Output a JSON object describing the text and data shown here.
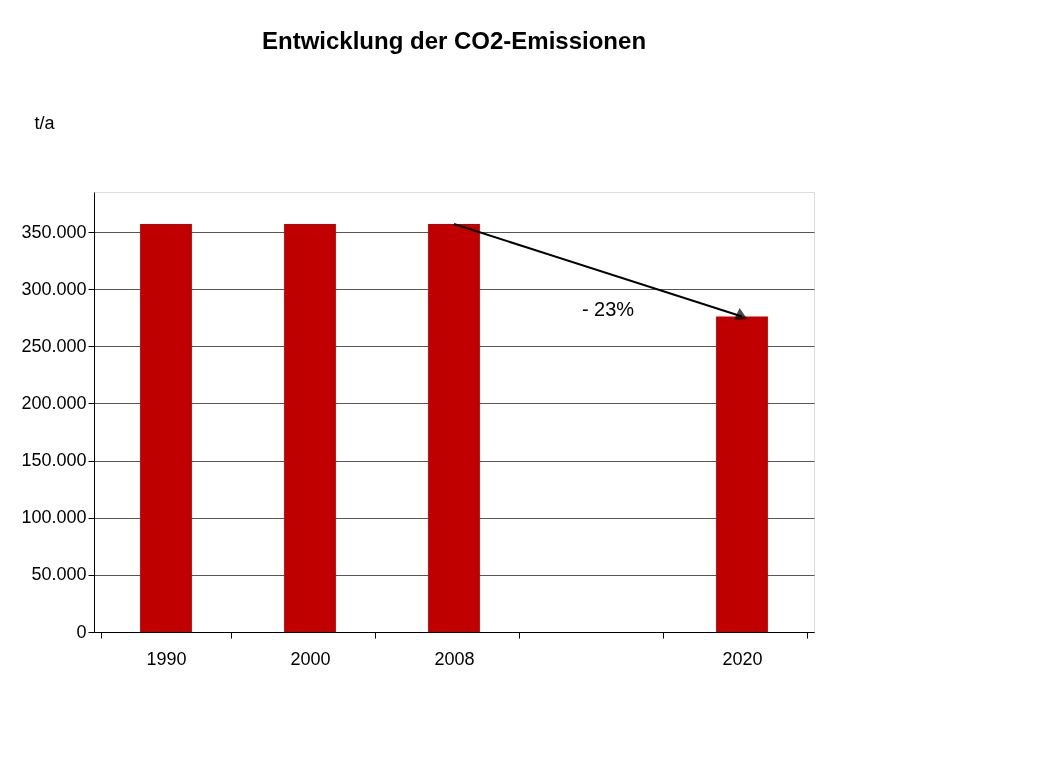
{
  "chart_data": {
    "type": "bar",
    "title": "Entwicklung der CO2-Emissionen",
    "ylabel": "t/a",
    "categories": [
      "1990",
      "2000",
      "2008",
      null,
      "2020"
    ],
    "series": [
      {
        "color": "#c00000",
        "values": [
          357000,
          357000,
          357000,
          null,
          276000
        ]
      }
    ],
    "ylim": [
      0,
      385000
    ],
    "yticks": [
      {
        "value": 0,
        "label": "0"
      },
      {
        "value": 50000,
        "label": "50.000"
      },
      {
        "value": 100000,
        "label": "100.000"
      },
      {
        "value": 150000,
        "label": "150.000"
      },
      {
        "value": 200000,
        "label": "200.000"
      },
      {
        "value": 250000,
        "label": "250.000"
      },
      {
        "value": 300000,
        "label": "300.000"
      },
      {
        "value": 350000,
        "label": "350.000"
      }
    ],
    "grid": "y",
    "annotations": [
      "- 23%"
    ]
  }
}
